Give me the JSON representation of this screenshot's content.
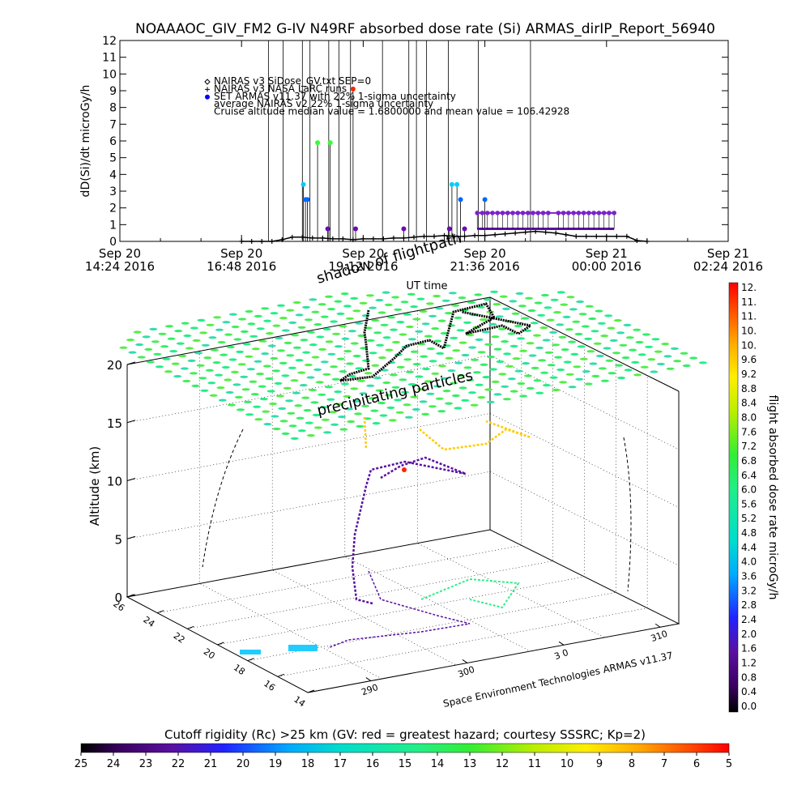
{
  "title": "NOAAAOC_GIV_FM2 G-IV    N49RF  absorbed dose rate (Si) ARMAS_dirIP_Report_56940",
  "chart_data": [
    {
      "type": "line",
      "ylabel": "dD(Si)/dt microGy/h",
      "xlabel": "UT time",
      "ylim": [
        0,
        12
      ],
      "yticks": [
        0,
        1,
        2,
        3,
        4,
        5,
        6,
        7,
        8,
        9,
        10,
        11,
        12
      ],
      "xticks": [
        {
          "date": "Sep 20",
          "time": "14:24 2016"
        },
        {
          "date": "Sep 20",
          "time": "16:48 2016"
        },
        {
          "date": "Sep 20",
          "time": "19:12 2016"
        },
        {
          "date": "Sep 20",
          "time": "21:36 2016"
        },
        {
          "date": "Sep 21",
          "time": "00:00 2016"
        },
        {
          "date": "Sep 21",
          "time": "02:24 2016"
        }
      ],
      "xrange_hours": [
        14.4,
        26.4
      ],
      "legend": [
        {
          "symbol": "diamond",
          "text": "NAIRAS v3 SiDose_GV.txt SEP=0"
        },
        {
          "symbol": "plus",
          "text": "NAIRAS v3 NASA LaRC runs"
        },
        {
          "symbol": "dot",
          "color": "#0000ff",
          "text": "SET ARMAS v11.37 with 22% 1-sigma uncertainty"
        },
        {
          "symbol": "none",
          "text": "average NAIRAS v2 22% 1-sigma uncertainty"
        },
        {
          "symbol": "none",
          "text": "Cruise altitude median value =  1.6800000 and mean value =  106.42928"
        }
      ],
      "vertical_lines_hours": [
        17.33,
        17.62,
        18.0,
        18.15,
        18.52,
        18.72,
        18.95,
        19.58,
        20.1,
        20.25,
        21.47,
        22.5,
        20.45,
        20.88
      ],
      "series": [
        {
          "marker": "plus",
          "x_hours": [
            16.8,
            17.0,
            17.2,
            17.4,
            17.6,
            17.8,
            18.0,
            18.2,
            18.4,
            18.6,
            18.8,
            19.0,
            19.2,
            19.4,
            19.6,
            19.8,
            20.0,
            20.2,
            20.4,
            20.6,
            20.8,
            21.0,
            21.2,
            21.4,
            21.6,
            21.8,
            22.0,
            22.2,
            22.4,
            22.6,
            22.8,
            23.0,
            23.2,
            23.4,
            23.6,
            23.8,
            24.0,
            24.2,
            24.4,
            24.6,
            24.8
          ],
          "y": [
            0,
            0,
            0,
            0,
            0.1,
            0.25,
            0.25,
            0.2,
            0.2,
            0.15,
            0.15,
            0.1,
            0.15,
            0.15,
            0.15,
            0.2,
            0.2,
            0.25,
            0.3,
            0.3,
            0.35,
            0.3,
            0.3,
            0.35,
            0.35,
            0.4,
            0.45,
            0.5,
            0.55,
            0.6,
            0.55,
            0.5,
            0.4,
            0.3,
            0.3,
            0.3,
            0.3,
            0.3,
            0.3,
            0.05,
            0
          ]
        },
        {
          "marker": "stem",
          "points": [
            {
              "x": 18.02,
              "y": 3.4,
              "color": "#00ccff"
            },
            {
              "x": 18.06,
              "y": 2.5,
              "color": "#0066ff"
            },
            {
              "x": 18.1,
              "y": 2.5,
              "color": "#0066ff"
            },
            {
              "x": 18.3,
              "y": 5.9,
              "color": "#33ff33"
            },
            {
              "x": 18.5,
              "y": 0.75,
              "color": "#6a0dad"
            },
            {
              "x": 18.55,
              "y": 5.9,
              "color": "#33ff33"
            },
            {
              "x": 19.0,
              "y": 9.1,
              "color": "#ff2200"
            },
            {
              "x": 19.05,
              "y": 0.75,
              "color": "#6a0dad"
            },
            {
              "x": 20.0,
              "y": 0.75,
              "color": "#6a0dad"
            },
            {
              "x": 20.9,
              "y": 0.75,
              "color": "#6a0dad"
            },
            {
              "x": 20.95,
              "y": 3.4,
              "color": "#00ccff"
            },
            {
              "x": 21.05,
              "y": 3.4,
              "color": "#00ccff"
            },
            {
              "x": 21.12,
              "y": 2.5,
              "color": "#0066ff"
            },
            {
              "x": 21.2,
              "y": 0.75,
              "color": "#6a0dad"
            },
            {
              "x": 21.6,
              "y": 2.5,
              "color": "#0066ff"
            }
          ]
        },
        {
          "marker": "dot",
          "color": "#7a22cc",
          "x_hours": [
            21.45,
            21.55,
            21.65,
            21.75,
            21.85,
            21.95,
            22.05,
            22.15,
            22.25,
            22.35,
            22.45,
            22.55,
            22.65,
            22.75,
            22.85,
            23.05,
            23.15,
            23.25,
            23.35,
            23.45,
            23.55,
            23.65,
            23.75,
            23.85,
            23.95,
            24.05,
            24.15
          ],
          "y": [
            1.7,
            1.7,
            1.7,
            1.7,
            1.7,
            1.7,
            1.7,
            1.7,
            1.7,
            1.7,
            1.7,
            1.7,
            1.7,
            1.7,
            1.7,
            1.7,
            1.7,
            1.7,
            1.7,
            1.7,
            1.7,
            1.7,
            1.7,
            1.7,
            1.7,
            1.7,
            1.7
          ],
          "baseline": 0.75
        }
      ]
    },
    {
      "type": "scatter",
      "title": "",
      "zlabel": "Altitude (km)",
      "zticks": [
        0,
        5,
        10,
        15,
        20
      ],
      "latticks": [
        14,
        16,
        18,
        20,
        22,
        24,
        26
      ],
      "lonticks": [
        290,
        300,
        310
      ],
      "lonticks_visible": [
        "290",
        "300",
        "3 0",
        "310"
      ],
      "annotations": [
        "shadow of flightpath",
        "precipitating particles"
      ],
      "credit": "Space Environment Technologies ARMAS v11.37"
    }
  ],
  "colorbar_right": {
    "label": "flight absorbed dose rate microGy/h",
    "ticks": [
      "12.",
      "11.",
      "11.",
      "10.",
      "10.",
      "9.6",
      "9.2",
      "8.8",
      "8.4",
      "8.0",
      "7.6",
      "7.2",
      "6.8",
      "6.4",
      "6.0",
      "5.6",
      "5.2",
      "4.8",
      "4.4",
      "4.0",
      "3.6",
      "3.2",
      "2.8",
      "2.4",
      "2.0",
      "1.6",
      "1.2",
      "0.8",
      "0.4",
      "0.0"
    ]
  },
  "colorbar_bottom": {
    "label": "Cutoff rigidity (Rc) >25 km (GV: red = greatest hazard; courtesy SSSRC; Kp=2)",
    "ticks": [
      "25",
      "24",
      "23",
      "22",
      "21",
      "20",
      "19",
      "18",
      "17",
      "16",
      "15",
      "14",
      "13",
      "12",
      "11",
      "10",
      "9",
      "8",
      "7",
      "6",
      "5"
    ]
  }
}
